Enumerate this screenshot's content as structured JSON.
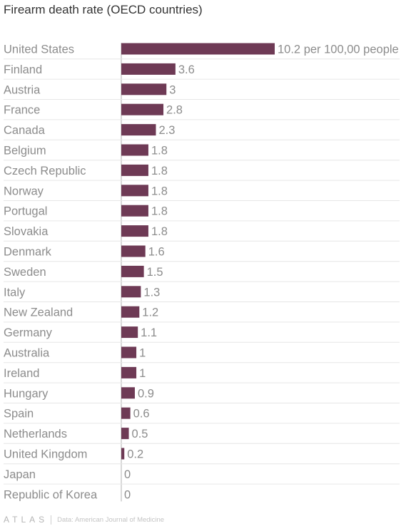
{
  "chart_data": {
    "type": "bar",
    "orientation": "horizontal",
    "title": "Firearm death rate (OECD countries)",
    "categories": [
      "United States",
      "Finland",
      "Austria",
      "France",
      "Canada",
      "Belgium",
      "Czech Republic",
      "Norway",
      "Portugal",
      "Slovakia",
      "Denmark",
      "Sweden",
      "Italy",
      "New Zealand",
      "Germany",
      "Australia",
      "Ireland",
      "Hungary",
      "Spain",
      "Netherlands",
      "United Kingdom",
      "Japan",
      "Republic of Korea"
    ],
    "values": [
      10.2,
      3.6,
      3,
      2.8,
      2.3,
      1.8,
      1.8,
      1.8,
      1.8,
      1.8,
      1.6,
      1.5,
      1.3,
      1.2,
      1.1,
      1,
      1,
      0.9,
      0.6,
      0.5,
      0.2,
      0,
      0
    ],
    "value_labels": [
      "10.2 per 100,00 people",
      "3.6",
      "3",
      "2.8",
      "2.3",
      "1.8",
      "1.8",
      "1.8",
      "1.8",
      "1.8",
      "1.6",
      "1.5",
      "1.3",
      "1.2",
      "1.1",
      "1",
      "1",
      "0.9",
      "0.6",
      "0.5",
      "0.2",
      "0",
      "0"
    ],
    "xlim": [
      0,
      10.2
    ],
    "grid": false,
    "legend": "none",
    "colors": {
      "bar": "#6e3a55",
      "category_label": "#8c8c8c",
      "value_label": "#8c8c8c",
      "row_separator": "#e6e6e6",
      "baseline": "#b0b0b0"
    }
  },
  "footer": {
    "logo": "ATLAS",
    "source": "Data: American Journal of Medicine"
  }
}
